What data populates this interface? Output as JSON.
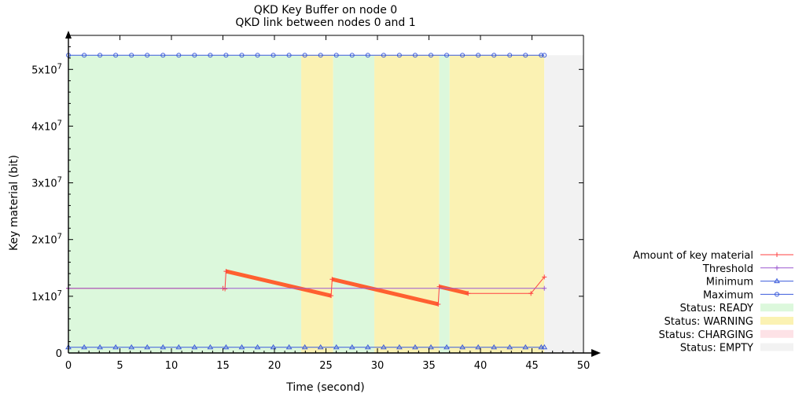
{
  "chart_data": {
    "type": "line",
    "title": "QKD Key Buffer on node 0",
    "subtitle": "QKD link between nodes 0 and 1",
    "xlabel": "Time (second)",
    "ylabel": "Key material (bit)",
    "xlim": [
      0,
      50
    ],
    "ylim": [
      0,
      56000000
    ],
    "xticks": [
      "0",
      "5",
      "10",
      "15",
      "20",
      "25",
      "30",
      "35",
      "40",
      "45",
      "50"
    ],
    "yticks": [
      {
        "value": 0,
        "label": "0"
      },
      {
        "value": 10000000,
        "base": "1x10",
        "exp": "7"
      },
      {
        "value": 20000000,
        "base": "2x10",
        "exp": "7"
      },
      {
        "value": 30000000,
        "base": "3x10",
        "exp": "7"
      },
      {
        "value": 40000000,
        "base": "4x10",
        "exp": "7"
      },
      {
        "value": 50000000,
        "base": "5x10",
        "exp": "7"
      }
    ],
    "grid": false,
    "legend_position": "right",
    "status_bands": [
      {
        "status": "READY",
        "x": [
          0,
          22.6
        ]
      },
      {
        "status": "WARNING",
        "x": [
          22.6,
          25.7
        ]
      },
      {
        "status": "READY",
        "x": [
          25.7,
          29.7
        ]
      },
      {
        "status": "WARNING",
        "x": [
          29.7,
          36.0
        ]
      },
      {
        "status": "READY",
        "x": [
          36.0,
          37.0
        ]
      },
      {
        "status": "WARNING",
        "x": [
          37.0,
          46.2
        ]
      },
      {
        "status": "EMPTY",
        "x": [
          46.2,
          50
        ]
      }
    ],
    "series": [
      {
        "name": "Amount of key material",
        "color": "#ff4040",
        "marker": "plus",
        "points": [
          [
            0,
            11400000
          ],
          [
            15.0,
            11400000
          ],
          [
            15.2,
            11300000
          ],
          [
            15.3,
            14400000
          ],
          [
            25.5,
            10100000
          ],
          [
            25.6,
            13000000
          ],
          [
            35.9,
            8600000
          ],
          [
            36.0,
            11700000
          ],
          [
            38.8,
            10500000
          ],
          [
            44.9,
            10500000
          ],
          [
            46.2,
            13400000
          ]
        ]
      },
      {
        "name": "Threshold",
        "color": "#9b59d0",
        "marker": "plus",
        "points": [
          [
            0,
            11400000
          ],
          [
            46.2,
            11400000
          ]
        ]
      },
      {
        "name": "Minimum",
        "color": "#3b5bdb",
        "marker": "triangle",
        "points": [
          [
            0,
            1000000
          ],
          [
            46.2,
            1000000
          ]
        ]
      },
      {
        "name": "Maximum",
        "color": "#3b5bdb",
        "marker": "circle",
        "points": [
          [
            0,
            52500000
          ],
          [
            46.2,
            52500000
          ]
        ]
      }
    ],
    "legend": [
      {
        "label": "Amount of key material",
        "kind": "line",
        "color": "#ff4040",
        "marker": "plus"
      },
      {
        "label": "Threshold",
        "kind": "line",
        "color": "#9b59d0",
        "marker": "plus"
      },
      {
        "label": "Minimum",
        "kind": "line",
        "color": "#3b5bdb",
        "marker": "triangle"
      },
      {
        "label": "Maximum",
        "kind": "line",
        "color": "#3b5bdb",
        "marker": "circle"
      },
      {
        "label": "Status: READY",
        "kind": "box",
        "color": "#dcf8dc"
      },
      {
        "label": "Status: WARNING",
        "kind": "box",
        "color": "#fbf2b3"
      },
      {
        "label": "Status: CHARGING",
        "kind": "box",
        "color": "#fde2e6"
      },
      {
        "label": "Status: EMPTY",
        "kind": "box",
        "color": "#f2f2f2"
      }
    ],
    "status_colors": {
      "READY": "#dcf8dc",
      "WARNING": "#fbf2b3",
      "CHARGING": "#fde2e6",
      "EMPTY": "#f2f2f2"
    }
  }
}
